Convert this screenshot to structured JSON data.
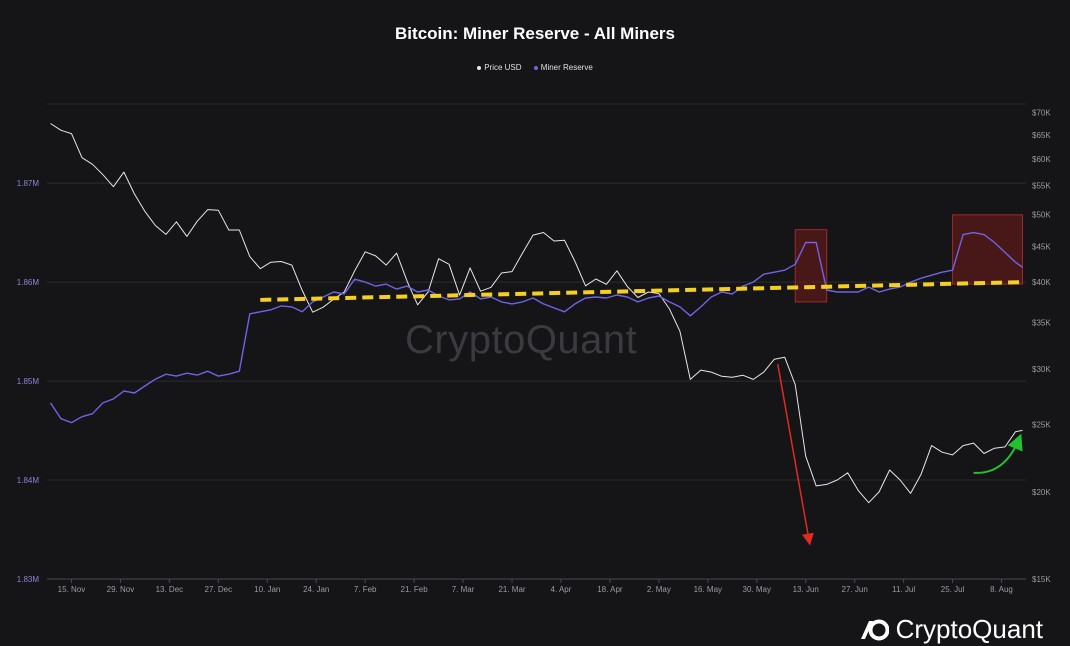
{
  "chart_data": {
    "type": "line",
    "title": "Bitcoin: Miner Reserve - All Miners",
    "legend": [
      "Price USD",
      "Miner Reserve"
    ],
    "legend_position": "top-center",
    "grid": "horizontal",
    "colors": {
      "price": "#e6e6e6",
      "reserve": "#6f63e6",
      "trend": "#f5d023",
      "crash_arrow": "#e02b20",
      "recovery_arrow": "#22c22e",
      "highlight": "#6b1a1a"
    },
    "x_tick_labels": [
      "15. Nov",
      "29. Nov",
      "13. Dec",
      "27. Dec",
      "10. Jan",
      "24. Jan",
      "7. Feb",
      "21. Feb",
      "7. Mar",
      "21. Mar",
      "4. Apr",
      "18. Apr",
      "2. May",
      "16. May",
      "30. May",
      "13. Jun",
      "27. Jun",
      "11. Jul",
      "25. Jul",
      "8. Aug"
    ],
    "y_left": {
      "label": "",
      "ticks": [
        "1.83M",
        "1.84M",
        "1.85M",
        "1.86M",
        "1.87M"
      ],
      "range": [
        1.83,
        1.878
      ]
    },
    "y_right": {
      "label": "",
      "scale": "log",
      "ticks": [
        "$15K",
        "$20K",
        "$25K",
        "$30K",
        "$35K",
        "$40K",
        "$45K",
        "$50K",
        "$55K",
        "$60K",
        "$65K",
        "$70K"
      ],
      "range": [
        15000,
        72000
      ]
    },
    "series": [
      {
        "name": "Price USD",
        "axis": "right",
        "x": [
          "2021-11-09",
          "2021-11-12",
          "2021-11-15",
          "2021-11-18",
          "2021-11-21",
          "2021-11-24",
          "2021-11-27",
          "2021-11-30",
          "2021-12-03",
          "2021-12-06",
          "2021-12-09",
          "2021-12-12",
          "2021-12-15",
          "2021-12-18",
          "2021-12-21",
          "2021-12-24",
          "2021-12-27",
          "2021-12-30",
          "2022-01-02",
          "2022-01-05",
          "2022-01-08",
          "2022-01-11",
          "2022-01-14",
          "2022-01-17",
          "2022-01-20",
          "2022-01-23",
          "2022-01-26",
          "2022-01-29",
          "2022-02-01",
          "2022-02-04",
          "2022-02-07",
          "2022-02-10",
          "2022-02-13",
          "2022-02-16",
          "2022-02-19",
          "2022-02-22",
          "2022-02-25",
          "2022-02-28",
          "2022-03-03",
          "2022-03-06",
          "2022-03-09",
          "2022-03-12",
          "2022-03-15",
          "2022-03-18",
          "2022-03-21",
          "2022-03-24",
          "2022-03-27",
          "2022-03-30",
          "2022-04-02",
          "2022-04-05",
          "2022-04-08",
          "2022-04-11",
          "2022-04-14",
          "2022-04-17",
          "2022-04-20",
          "2022-04-23",
          "2022-04-26",
          "2022-04-29",
          "2022-05-02",
          "2022-05-05",
          "2022-05-08",
          "2022-05-11",
          "2022-05-14",
          "2022-05-17",
          "2022-05-20",
          "2022-05-23",
          "2022-05-26",
          "2022-05-29",
          "2022-06-01",
          "2022-06-04",
          "2022-06-07",
          "2022-06-10",
          "2022-06-13",
          "2022-06-16",
          "2022-06-19",
          "2022-06-22",
          "2022-06-25",
          "2022-06-28",
          "2022-07-01",
          "2022-07-04",
          "2022-07-07",
          "2022-07-10",
          "2022-07-13",
          "2022-07-16",
          "2022-07-19",
          "2022-07-22",
          "2022-07-25",
          "2022-07-28",
          "2022-07-31",
          "2022-08-03",
          "2022-08-06",
          "2022-08-09",
          "2022-08-12",
          "2022-08-14"
        ],
        "values": [
          67500,
          66000,
          65300,
          60300,
          59000,
          57000,
          54800,
          57500,
          53500,
          50500,
          48200,
          46800,
          48800,
          46500,
          48900,
          50800,
          50700,
          47500,
          47500,
          43500,
          41800,
          42700,
          42800,
          42300,
          38900,
          36200,
          36800,
          37800,
          38700,
          41500,
          44200,
          43600,
          42300,
          44000,
          40100,
          37100,
          38700,
          43200,
          42400,
          38300,
          41900,
          38800,
          39300,
          41200,
          41400,
          44000,
          46700,
          47100,
          45800,
          45900,
          42800,
          39500,
          40400,
          39700,
          41500,
          39400,
          38000,
          38700,
          38500,
          36600,
          34000,
          29000,
          29900,
          29700,
          29300,
          29200,
          29400,
          29000,
          29700,
          31000,
          31200,
          28500,
          22500,
          20400,
          20500,
          20800,
          21300,
          20100,
          19300,
          20000,
          21500,
          20800,
          19900,
          21200,
          23300,
          22800,
          22600,
          23300,
          23500,
          22700,
          23100,
          23200,
          24400,
          24500
        ]
      },
      {
        "name": "Miner Reserve",
        "axis": "left",
        "x": [
          "2021-11-09",
          "2021-11-12",
          "2021-11-15",
          "2021-11-18",
          "2021-11-21",
          "2021-11-24",
          "2021-11-27",
          "2021-11-30",
          "2021-12-03",
          "2021-12-06",
          "2021-12-09",
          "2021-12-12",
          "2021-12-15",
          "2021-12-18",
          "2021-12-21",
          "2021-12-24",
          "2021-12-27",
          "2021-12-30",
          "2022-01-02",
          "2022-01-05",
          "2022-01-08",
          "2022-01-11",
          "2022-01-14",
          "2022-01-17",
          "2022-01-20",
          "2022-01-23",
          "2022-01-26",
          "2022-01-29",
          "2022-02-01",
          "2022-02-04",
          "2022-02-07",
          "2022-02-10",
          "2022-02-13",
          "2022-02-16",
          "2022-02-19",
          "2022-02-22",
          "2022-02-25",
          "2022-02-28",
          "2022-03-03",
          "2022-03-06",
          "2022-03-09",
          "2022-03-12",
          "2022-03-15",
          "2022-03-18",
          "2022-03-21",
          "2022-03-24",
          "2022-03-27",
          "2022-03-30",
          "2022-04-02",
          "2022-04-05",
          "2022-04-08",
          "2022-04-11",
          "2022-04-14",
          "2022-04-17",
          "2022-04-20",
          "2022-04-23",
          "2022-04-26",
          "2022-04-29",
          "2022-05-02",
          "2022-05-05",
          "2022-05-08",
          "2022-05-11",
          "2022-05-14",
          "2022-05-17",
          "2022-05-20",
          "2022-05-23",
          "2022-05-26",
          "2022-05-29",
          "2022-06-01",
          "2022-06-04",
          "2022-06-07",
          "2022-06-10",
          "2022-06-13",
          "2022-06-16",
          "2022-06-19",
          "2022-06-22",
          "2022-06-25",
          "2022-06-28",
          "2022-07-01",
          "2022-07-04",
          "2022-07-07",
          "2022-07-10",
          "2022-07-13",
          "2022-07-16",
          "2022-07-19",
          "2022-07-22",
          "2022-07-25",
          "2022-07-28",
          "2022-07-31",
          "2022-08-03",
          "2022-08-06",
          "2022-08-09",
          "2022-08-12",
          "2022-08-14"
        ],
        "values": [
          1.8478,
          1.8462,
          1.8458,
          1.8464,
          1.8467,
          1.8478,
          1.8482,
          1.849,
          1.8488,
          1.8495,
          1.8502,
          1.8507,
          1.8505,
          1.8508,
          1.8506,
          1.851,
          1.8505,
          1.8507,
          1.851,
          1.8568,
          1.857,
          1.8572,
          1.8576,
          1.8575,
          1.857,
          1.858,
          1.8585,
          1.859,
          1.8588,
          1.8603,
          1.86,
          1.8596,
          1.8598,
          1.8593,
          1.8596,
          1.859,
          1.8592,
          1.8586,
          1.8582,
          1.8583,
          1.859,
          1.8583,
          1.8585,
          1.858,
          1.8578,
          1.858,
          1.8584,
          1.8578,
          1.8574,
          1.857,
          1.8578,
          1.8584,
          1.8585,
          1.8584,
          1.8587,
          1.8585,
          1.858,
          1.8584,
          1.8586,
          1.858,
          1.8575,
          1.8566,
          1.8575,
          1.8585,
          1.859,
          1.8588,
          1.8596,
          1.86,
          1.8608,
          1.861,
          1.8612,
          1.8618,
          1.864,
          1.864,
          1.8592,
          1.859,
          1.859,
          1.859,
          1.8595,
          1.859,
          1.8593,
          1.8595,
          1.86,
          1.8604,
          1.8607,
          1.861,
          1.8612,
          1.8648,
          1.865,
          1.8648,
          1.864,
          1.863,
          1.862,
          1.8615
        ]
      }
    ],
    "annotations": [
      {
        "type": "dashed-trendline",
        "axis": "left",
        "from": [
          "2022-01-08",
          1.8582
        ],
        "to": [
          "2022-08-14",
          1.86
        ]
      },
      {
        "type": "arrow-down",
        "from": [
          "2022-06-05",
          30500
        ],
        "to": [
          "2022-06-14",
          17000
        ]
      },
      {
        "type": "arrow-up",
        "from": [
          "2022-07-31",
          21300
        ],
        "to": [
          "2022-08-13",
          23800
        ]
      },
      {
        "type": "highlight-box",
        "axis": "left",
        "from": [
          "2022-06-10",
          1.8653
        ],
        "to": [
          "2022-06-19",
          1.858
        ]
      },
      {
        "type": "highlight-box",
        "axis": "left",
        "from": [
          "2022-07-25",
          1.8668
        ],
        "to": [
          "2022-08-14",
          1.8598
        ]
      }
    ]
  },
  "watermark": "CryptoQuant",
  "brand": {
    "name": "CryptoQuant",
    "icon": "cryptoquant-logo-icon"
  }
}
